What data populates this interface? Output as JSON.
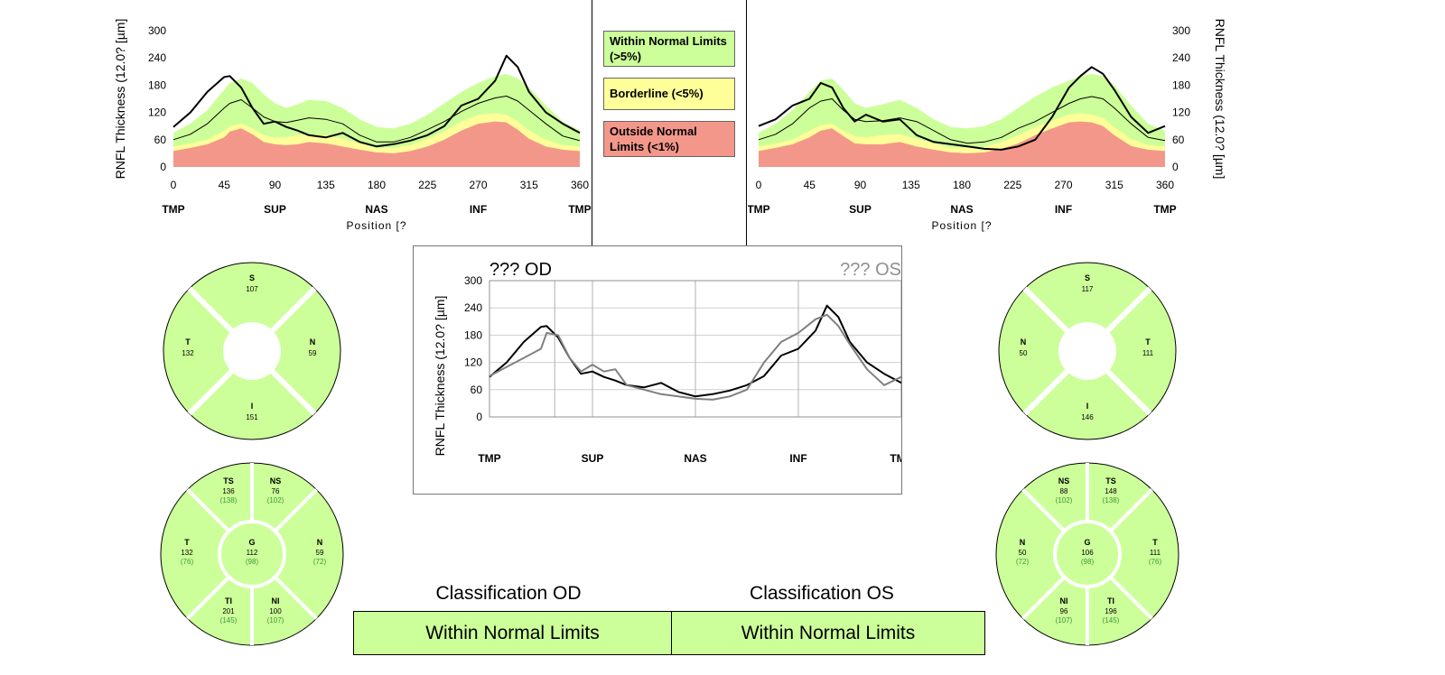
{
  "legend": {
    "items": [
      {
        "label": "Within Normal Limits (>5%)",
        "color": "#ccff99"
      },
      {
        "label": "Borderline (<5%)",
        "color": "#ffff99"
      },
      {
        "label": "Outside Normal Limits (<1%)",
        "color": "#f4978b"
      }
    ]
  },
  "chart_data": [
    {
      "id": "od-tsnit",
      "type": "line",
      "ylabel": "RNFL Thickness (12.0? [µm]",
      "xlabel": "Position [?",
      "ylim": [
        0,
        300
      ],
      "xlim": [
        0,
        360
      ],
      "yticks": [
        0,
        60,
        120,
        180,
        240,
        300
      ],
      "xticks": [
        0,
        45,
        90,
        135,
        180,
        225,
        270,
        315,
        360
      ],
      "sector_labels": [
        "TMP",
        "SUP",
        "NAS",
        "INF",
        "TMP"
      ],
      "x": [
        0,
        15,
        30,
        45,
        50,
        60,
        70,
        80,
        90,
        100,
        110,
        120,
        135,
        150,
        165,
        180,
        195,
        210,
        225,
        240,
        255,
        270,
        285,
        295,
        305,
        315,
        330,
        345,
        360
      ],
      "series": [
        {
          "values": [
            88,
            120,
            165,
            198,
            200,
            175,
            130,
            95,
            100,
            88,
            80,
            70,
            65,
            75,
            55,
            45,
            50,
            58,
            70,
            90,
            135,
            150,
            190,
            245,
            220,
            165,
            120,
            95,
            75
          ]
        },
        {
          "values": [
            60,
            72,
            95,
            130,
            140,
            148,
            130,
            110,
            100,
            98,
            103,
            108,
            105,
            95,
            70,
            55,
            55,
            65,
            82,
            100,
            122,
            140,
            152,
            156,
            145,
            125,
            95,
            68,
            58
          ]
        }
      ],
      "normative": {
        "upper": [
          75,
          95,
          125,
          170,
          185,
          195,
          185,
          160,
          140,
          130,
          138,
          148,
          145,
          130,
          105,
          88,
          85,
          95,
          115,
          140,
          165,
          185,
          200,
          205,
          195,
          175,
          135,
          100,
          80
        ],
        "p5": [
          45,
          52,
          60,
          80,
          90,
          95,
          85,
          70,
          65,
          65,
          70,
          72,
          70,
          62,
          52,
          42,
          42,
          48,
          62,
          78,
          100,
          115,
          118,
          115,
          100,
          80,
          60,
          48,
          45
        ],
        "p1": [
          35,
          42,
          50,
          65,
          78,
          85,
          72,
          55,
          50,
          48,
          50,
          55,
          52,
          45,
          38,
          32,
          30,
          35,
          45,
          60,
          80,
          95,
          100,
          98,
          82,
          62,
          45,
          38,
          35
        ]
      }
    },
    {
      "id": "os-tsnit",
      "type": "line",
      "ylabel": "RNFL Thickness (12.0? [µm]",
      "xlabel": "Position [?",
      "ylim": [
        0,
        300
      ],
      "xlim": [
        0,
        360
      ],
      "yticks": [
        0,
        60,
        120,
        180,
        240,
        300
      ],
      "xticks": [
        0,
        45,
        90,
        135,
        180,
        225,
        270,
        315,
        360
      ],
      "sector_labels": [
        "TMP",
        "SUP",
        "NAS",
        "INF",
        "TMP"
      ],
      "x": [
        0,
        15,
        30,
        45,
        55,
        65,
        75,
        85,
        95,
        110,
        125,
        140,
        155,
        170,
        185,
        200,
        215,
        230,
        245,
        260,
        275,
        285,
        295,
        305,
        315,
        330,
        345,
        360
      ],
      "series": [
        {
          "values": [
            90,
            105,
            135,
            150,
            185,
            175,
            130,
            100,
            115,
            100,
            105,
            70,
            55,
            50,
            45,
            40,
            38,
            45,
            60,
            110,
            175,
            200,
            220,
            205,
            170,
            110,
            75,
            90
          ]
        },
        {
          "values": [
            60,
            72,
            95,
            130,
            145,
            150,
            125,
            105,
            100,
            102,
            108,
            100,
            80,
            60,
            52,
            55,
            65,
            85,
            100,
            120,
            140,
            150,
            155,
            150,
            130,
            95,
            65,
            58
          ]
        }
      ],
      "normative": {
        "upper": [
          75,
          95,
          125,
          165,
          190,
          195,
          170,
          140,
          130,
          138,
          148,
          130,
          105,
          88,
          85,
          90,
          105,
          130,
          155,
          175,
          190,
          200,
          205,
          200,
          180,
          135,
          95,
          80
        ],
        "p5": [
          45,
          52,
          60,
          80,
          92,
          95,
          80,
          68,
          65,
          70,
          72,
          62,
          52,
          42,
          42,
          45,
          55,
          70,
          88,
          102,
          115,
          118,
          115,
          108,
          88,
          62,
          48,
          45
        ],
        "p1": [
          35,
          42,
          50,
          65,
          80,
          85,
          68,
          52,
          50,
          50,
          55,
          45,
          38,
          32,
          30,
          32,
          40,
          52,
          70,
          85,
          98,
          100,
          98,
          90,
          70,
          46,
          38,
          35
        ]
      }
    },
    {
      "id": "comparison",
      "type": "line",
      "title_left": "??? OD",
      "title_right": "??? OS",
      "ylabel": "RNFL Thickness (12.0? [µm]",
      "ylim": [
        0,
        300
      ],
      "xlim": [
        0,
        360
      ],
      "yticks": [
        0,
        60,
        120,
        180,
        240,
        300
      ],
      "sector_labels": [
        "TMP",
        "SUP",
        "NAS",
        "INF",
        "TMP"
      ],
      "x": [
        0,
        15,
        30,
        45,
        50,
        60,
        70,
        80,
        90,
        100,
        110,
        120,
        135,
        150,
        165,
        180,
        195,
        210,
        225,
        240,
        255,
        270,
        285,
        295,
        305,
        315,
        330,
        345,
        360
      ],
      "series": [
        {
          "name": "??? OD",
          "color": "#000000",
          "values": [
            88,
            120,
            165,
            198,
            200,
            175,
            130,
            95,
            100,
            88,
            80,
            70,
            65,
            75,
            55,
            45,
            50,
            58,
            70,
            90,
            135,
            150,
            190,
            245,
            220,
            165,
            120,
            95,
            75
          ]
        },
        {
          "name": "??? OS",
          "color": "#808080",
          "values": [
            90,
            110,
            130,
            150,
            185,
            180,
            130,
            100,
            115,
            100,
            105,
            70,
            60,
            50,
            45,
            40,
            38,
            45,
            60,
            120,
            165,
            185,
            215,
            225,
            200,
            160,
            105,
            70,
            88
          ]
        }
      ]
    }
  ],
  "od_quadrants": {
    "S": {
      "label": "S",
      "value": "107"
    },
    "N": {
      "label": "N",
      "value": "59"
    },
    "I": {
      "label": "I",
      "value": "151"
    },
    "T": {
      "label": "T",
      "value": "132"
    }
  },
  "os_quadrants": {
    "S": {
      "label": "S",
      "value": "117"
    },
    "N": {
      "label": "N",
      "value": "50"
    },
    "I": {
      "label": "I",
      "value": "146"
    },
    "T": {
      "label": "T",
      "value": "111"
    }
  },
  "od_sectors": {
    "TS": {
      "label": "TS",
      "value": "136",
      "normal": "(138)"
    },
    "NS": {
      "label": "NS",
      "value": "76",
      "normal": "(102)"
    },
    "N": {
      "label": "N",
      "value": "59",
      "normal": "(72)"
    },
    "NI": {
      "label": "NI",
      "value": "100",
      "normal": "(107)"
    },
    "TI": {
      "label": "TI",
      "value": "201",
      "normal": "(145)"
    },
    "T": {
      "label": "T",
      "value": "132",
      "normal": "(76)"
    },
    "G": {
      "label": "G",
      "value": "112",
      "normal": "(98)"
    }
  },
  "os_sectors": {
    "NS": {
      "label": "NS",
      "value": "88",
      "normal": "(102)"
    },
    "TS": {
      "label": "TS",
      "value": "148",
      "normal": "(138)"
    },
    "T": {
      "label": "T",
      "value": "111",
      "normal": "(76)"
    },
    "TI": {
      "label": "TI",
      "value": "196",
      "normal": "(145)"
    },
    "NI": {
      "label": "NI",
      "value": "96",
      "normal": "(107)"
    },
    "N": {
      "label": "N",
      "value": "50",
      "normal": "(72)"
    },
    "G": {
      "label": "G",
      "value": "106",
      "normal": "(98)"
    }
  },
  "classification": {
    "od_title": "Classification OD",
    "os_title": "Classification OS",
    "od_value": "Within Normal Limits",
    "os_value": "Within Normal Limits"
  }
}
